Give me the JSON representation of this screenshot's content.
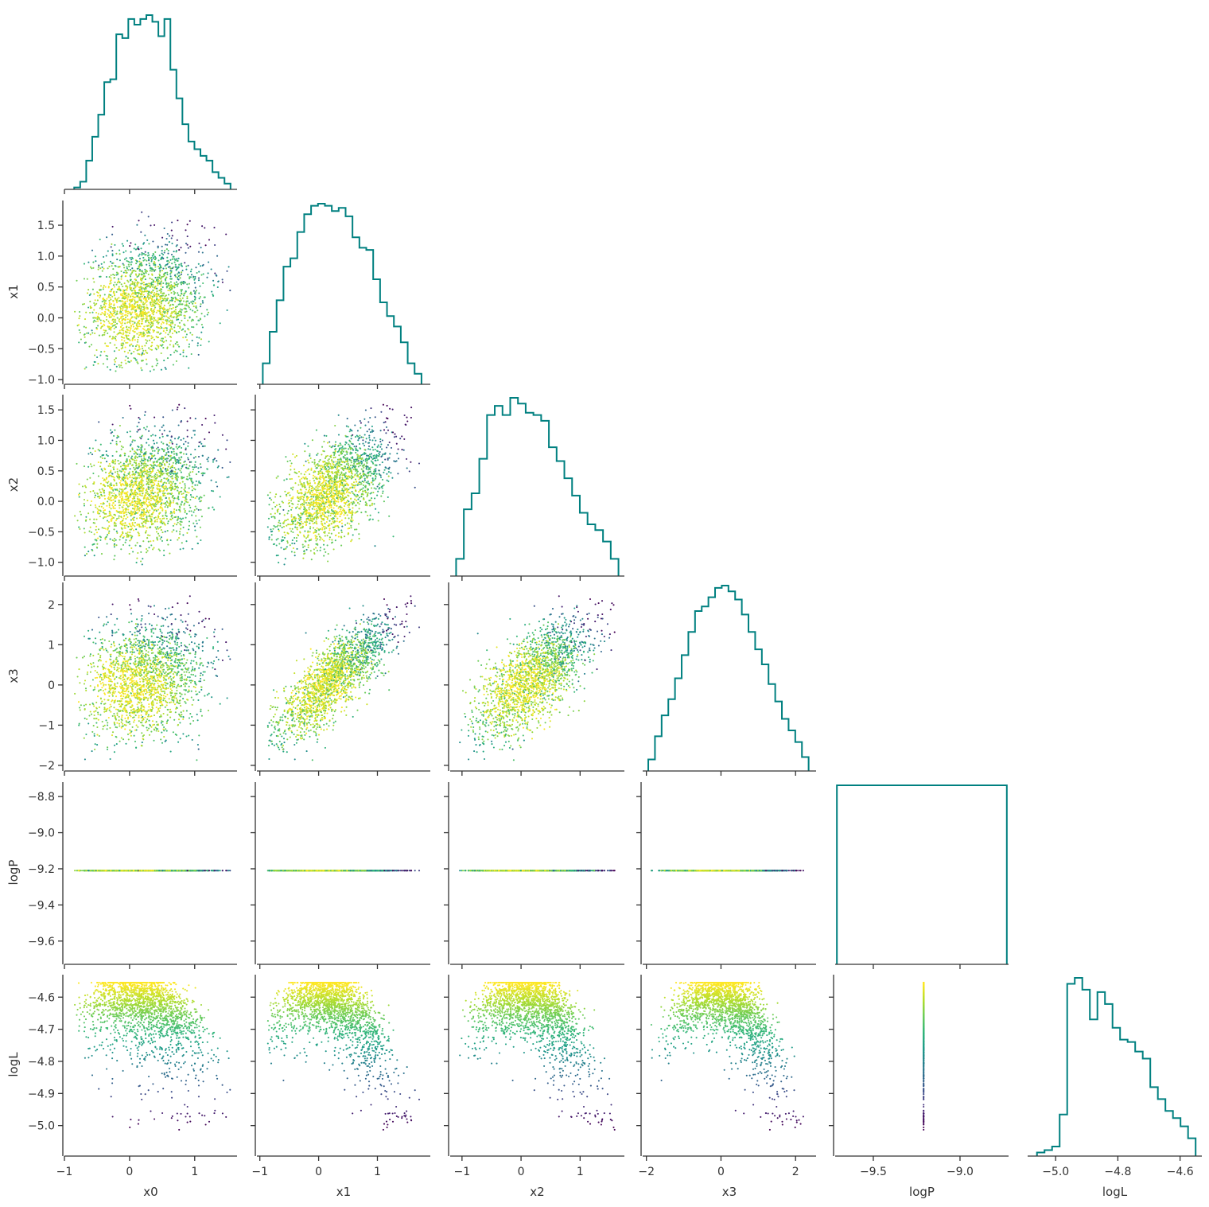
{
  "chart_data": {
    "type": "corner",
    "variables": [
      "x0",
      "x1",
      "x2",
      "x3",
      "logP",
      "logL"
    ],
    "ranges": {
      "x0": [
        -1.0,
        1.65
      ],
      "x1": [
        -1.05,
        1.9
      ],
      "x2": [
        -1.2,
        1.75
      ],
      "x3": [
        -2.1,
        2.55
      ],
      "logP": [
        -9.72,
        -8.72
      ],
      "logL": [
        -5.09,
        -4.53
      ]
    },
    "ticks": {
      "x0": [
        -1,
        0,
        1
      ],
      "x1": [
        -1,
        0,
        1
      ],
      "x2": [
        -1,
        0,
        1
      ],
      "x3": [
        -2,
        0,
        2
      ],
      "logP": [
        -9.5,
        -9.0
      ],
      "logL": [
        -5.0,
        -4.8,
        -4.6
      ]
    },
    "tick_labels": {
      "x0": [
        "−1",
        "0",
        "1"
      ],
      "x1": [
        "−1",
        "0",
        "1"
      ],
      "x2": [
        "−1",
        "0",
        "1"
      ],
      "x3": [
        "−2",
        "0",
        "2"
      ],
      "logP": [
        "−9.5",
        "−9.0"
      ],
      "logL": [
        "−5.0",
        "−4.8",
        "−4.6"
      ]
    },
    "y_ticks": {
      "x1": [
        -1.0,
        -0.5,
        0.0,
        0.5,
        1.0,
        1.5
      ],
      "x2": [
        -1.0,
        -0.5,
        0.0,
        0.5,
        1.0,
        1.5
      ],
      "x3": [
        -2,
        -1,
        0,
        1,
        2
      ],
      "logP": [
        -9.6,
        -9.4,
        -9.2,
        -9.0,
        -8.8
      ],
      "logL": [
        -5.0,
        -4.9,
        -4.8,
        -4.7,
        -4.6
      ]
    },
    "y_tick_labels": {
      "x1": [
        "−1.0",
        "−0.5",
        "0.0",
        "0.5",
        "1.0",
        "1.5"
      ],
      "x2": [
        "−1.0",
        "−0.5",
        "0.0",
        "0.5",
        "1.0",
        "1.5"
      ],
      "x3": [
        "−2",
        "−1",
        "0",
        "1",
        "2"
      ],
      "logP": [
        "−9.6",
        "−9.4",
        "−9.2",
        "−9.0",
        "−8.8"
      ],
      "logL": [
        "−5.0",
        "−4.9",
        "−4.8",
        "−4.7",
        "−4.6"
      ]
    },
    "histograms": {
      "x0": {
        "edges_range": [
          -0.85,
          1.55
        ],
        "counts": [
          2,
          8,
          30,
          55,
          78,
          112,
          115,
          162,
          158,
          178,
          172,
          178,
          182,
          175,
          160,
          178,
          125,
          95,
          68,
          50,
          42,
          35,
          30,
          18,
          12,
          6
        ]
      },
      "x1": {
        "edges_range": [
          -0.95,
          1.75
        ],
        "counts": [
          20,
          50,
          80,
          112,
          120,
          145,
          162,
          170,
          172,
          170,
          165,
          168,
          160,
          140,
          130,
          128,
          100,
          78,
          65,
          55,
          40,
          20,
          10
        ]
      },
      "x2": {
        "edges_range": [
          -1.1,
          1.65
        ],
        "counts": [
          15,
          58,
          72,
          102,
          140,
          148,
          140,
          155,
          150,
          142,
          140,
          135,
          112,
          100,
          85,
          70,
          55,
          45,
          40,
          30,
          15
        ]
      },
      "x3": {
        "edges_range": [
          -1.95,
          2.35
        ],
        "counts": [
          10,
          30,
          48,
          62,
          80,
          100,
          120,
          138,
          142,
          150,
          158,
          160,
          155,
          148,
          135,
          120,
          105,
          92,
          75,
          60,
          45,
          35,
          25,
          12
        ]
      },
      "logP": {
        "edges_range": [
          -9.71,
          -8.73
        ],
        "counts": [
          1
        ]
      },
      "logL": {
        "edges_range": [
          -5.06,
          -4.55
        ],
        "counts": [
          3,
          5,
          8,
          35,
          145,
          150,
          140,
          115,
          138,
          128,
          108,
          98,
          96,
          88,
          82,
          58,
          48,
          38,
          32,
          25,
          15
        ]
      }
    },
    "logP_value": -9.21,
    "n_samples": 2000,
    "colormap": "viridis",
    "color_by": "logL",
    "hist_color": "#008080",
    "grid": false,
    "legend": "none"
  }
}
